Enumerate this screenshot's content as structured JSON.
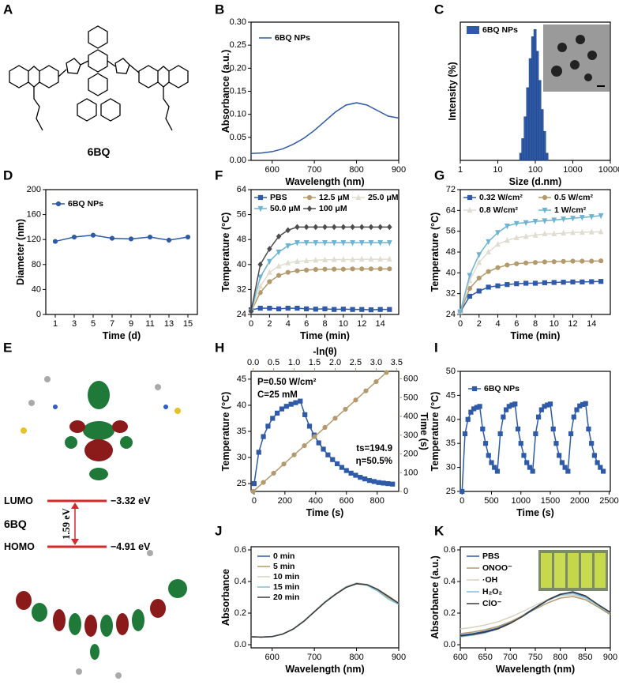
{
  "panel_labels": [
    "A",
    "B",
    "C",
    "D",
    "E",
    "F",
    "G",
    "H",
    "I",
    "J",
    "K"
  ],
  "structure_label": "6BQ",
  "energy_diagram": {
    "molecule": "6BQ",
    "lumo_label": "LUMO",
    "lumo_energy": "−3.32 eV",
    "homo_label": "HOMO",
    "homo_energy": "−4.91 eV",
    "gap": "1.59 eV"
  },
  "chart_data": [
    {
      "type": "line",
      "xlabel": "Wavelength (nm)",
      "ylabel": "Absorbance (a.u.)",
      "x": [
        550,
        575,
        600,
        625,
        650,
        675,
        700,
        725,
        750,
        775,
        800,
        825,
        850,
        875,
        900
      ],
      "series": [
        {
          "name": "6BQ NPs",
          "color": "#2e5aa8",
          "values": [
            0.015,
            0.016,
            0.019,
            0.025,
            0.035,
            0.048,
            0.065,
            0.085,
            0.105,
            0.12,
            0.125,
            0.12,
            0.108,
            0.096,
            0.092
          ]
        }
      ],
      "xlim": [
        550,
        900
      ],
      "xticks": [
        600,
        700,
        800,
        900
      ],
      "ylim": [
        0,
        0.3
      ],
      "yticks": [
        {
          "value": 0,
          "label": "0.00"
        },
        {
          "value": 0.05,
          "label": "0.05"
        },
        {
          "value": 0.1,
          "label": "0.10"
        },
        {
          "value": 0.15,
          "label": "0.15"
        },
        {
          "value": 0.2,
          "label": "0.20"
        },
        {
          "value": 0.25,
          "label": "0.25"
        },
        {
          "value": 0.3,
          "label": "0.30"
        }
      ],
      "legend": "upper left"
    },
    {
      "type": "histogram",
      "xlabel": "Size (d.nm)",
      "ylabel": "Intensity (%)",
      "name": "6BQ NPs",
      "color": "#2e5aa8",
      "bins": [
        38,
        43,
        50,
        58,
        68,
        79,
        91,
        106,
        122,
        142,
        164,
        190,
        220
      ],
      "counts": [
        1,
        3,
        6,
        10,
        14,
        17,
        18,
        15,
        11,
        7,
        4,
        1
      ],
      "xscale": "log",
      "xlim": [
        1,
        10000
      ],
      "xticks": [
        1,
        10,
        100,
        1000,
        10000
      ],
      "ylim": [
        0,
        19
      ],
      "yticks": [],
      "legend": "upper left"
    },
    {
      "type": "line",
      "xlabel": "Time (d)",
      "ylabel": "Diameter (nm)",
      "x": [
        1,
        3,
        5,
        7,
        9,
        11,
        13,
        15
      ],
      "series": [
        {
          "name": "6BQ NPs",
          "color": "#2e5aa8",
          "marker": "circle",
          "values": [
            117,
            124,
            127,
            122,
            121,
            124,
            119,
            124
          ],
          "errors": [
            2,
            3,
            4,
            2,
            1.5,
            3,
            4,
            2
          ]
        }
      ],
      "xlim": [
        0,
        16
      ],
      "xticks": [
        1,
        3,
        5,
        7,
        9,
        11,
        13,
        15
      ],
      "ylim": [
        0,
        200
      ],
      "yticks": [
        0,
        40,
        80,
        120,
        160,
        200
      ],
      "legend": "upper left"
    },
    {
      "type": "line",
      "xlabel": "Time (min)",
      "ylabel": "Temperature (°C)",
      "x": [
        0,
        1,
        2,
        3,
        4,
        5,
        6,
        7,
        8,
        9,
        10,
        11,
        12,
        13,
        14,
        15
      ],
      "series": [
        {
          "name": "PBS",
          "color": "#2e5aa8",
          "marker": "square",
          "values": [
            25.5,
            26,
            26,
            25.8,
            26,
            26,
            25.8,
            25.7,
            25.8,
            25.6,
            25.7,
            25.6,
            25.6,
            25.5,
            25.6,
            25.6
          ]
        },
        {
          "name": "12.5 μM",
          "color": "#b39a6c",
          "marker": "circle",
          "values": [
            25,
            31,
            34.5,
            36.5,
            37.5,
            38,
            38.2,
            38.4,
            38.5,
            38.5,
            38.5,
            38.6,
            38.6,
            38.6,
            38.6,
            38.6
          ]
        },
        {
          "name": "25.0 μM",
          "color": "#e0ddd0",
          "marker": "triangle",
          "values": [
            25,
            33,
            37.5,
            39.5,
            40.5,
            41,
            41.2,
            41.4,
            41.5,
            41.6,
            41.6,
            41.6,
            41.7,
            41.7,
            41.7,
            41.7
          ]
        },
        {
          "name": "50.0 μM",
          "color": "#6fb3d2",
          "marker": "triangle-down",
          "values": [
            25,
            36,
            41,
            44,
            46,
            47,
            47,
            47,
            47,
            47,
            47,
            47,
            47,
            47,
            47,
            47
          ]
        },
        {
          "name": "100 μM",
          "color": "#4d4d4d",
          "marker": "diamond",
          "values": [
            25,
            40,
            45,
            49,
            51,
            52,
            52,
            52,
            52,
            52,
            52,
            52,
            52,
            52,
            52,
            52
          ]
        }
      ],
      "xlim": [
        0,
        16
      ],
      "xticks": [
        0,
        2,
        4,
        6,
        8,
        10,
        12,
        14
      ],
      "ylim": [
        24,
        64
      ],
      "yticks": [
        24,
        32,
        40,
        48,
        56,
        64
      ],
      "legend": "upper center"
    },
    {
      "type": "line",
      "xlabel": "Time (min)",
      "ylabel": "Temperature (°C)",
      "x": [
        0,
        1,
        2,
        3,
        4,
        5,
        6,
        7,
        8,
        9,
        10,
        11,
        12,
        13,
        14,
        15
      ],
      "series": [
        {
          "name": "0.32 W/cm²",
          "color": "#2e5aa8",
          "marker": "square",
          "values": [
            25,
            31,
            33,
            34.5,
            35,
            35.5,
            35.8,
            36,
            36,
            36.2,
            36.3,
            36.4,
            36.5,
            36.5,
            36.6,
            36.7
          ]
        },
        {
          "name": "0.5 W/cm²",
          "color": "#b39a6c",
          "marker": "circle",
          "values": [
            25,
            34,
            38,
            40.5,
            42,
            43,
            43.5,
            43.8,
            44,
            44.2,
            44.3,
            44.4,
            44.5,
            44.5,
            44.5,
            44.6
          ]
        },
        {
          "name": "0.8 W/cm²",
          "color": "#e0ddd0",
          "marker": "triangle",
          "values": [
            25,
            37,
            44,
            48,
            51,
            52.5,
            53.5,
            54,
            54.5,
            55,
            55,
            55.3,
            55.5,
            55.6,
            55.7,
            55.8
          ]
        },
        {
          "name": "1 W/cm²",
          "color": "#6fb3d2",
          "marker": "triangle-down",
          "values": [
            25,
            39,
            47,
            52,
            55.5,
            58,
            59,
            59.3,
            59.8,
            60,
            60.3,
            60.7,
            61,
            61.3,
            61.6,
            62
          ]
        }
      ],
      "xlim": [
        0,
        16
      ],
      "xticks": [
        0,
        2,
        4,
        6,
        8,
        10,
        12,
        14
      ],
      "ylim": [
        24,
        72
      ],
      "yticks": [
        24,
        32,
        40,
        48,
        56,
        64,
        72
      ],
      "legend": "upper center"
    },
    {
      "type": "line",
      "xlabel": "Time (s)",
      "ylabel": "Temperature (°C)",
      "x2label": "-ln(θ)",
      "y2label": "Time (s)",
      "x": [
        0,
        30,
        60,
        90,
        120,
        150,
        180,
        210,
        240,
        270,
        300,
        330,
        360,
        390,
        420,
        450,
        480,
        510,
        540,
        570,
        600,
        630,
        660,
        690,
        720,
        750,
        780,
        810,
        840,
        870,
        900
      ],
      "series": [
        {
          "color": "#2e5aa8",
          "marker": "square",
          "values": [
            25,
            31,
            34,
            36,
            37.5,
            38.5,
            39.3,
            39.8,
            40.2,
            40.5,
            40.8,
            38.2,
            36,
            34.3,
            32.8,
            31.6,
            30.5,
            29.6,
            28.8,
            28.1,
            27.5,
            27,
            26.6,
            26.2,
            25.9,
            25.6,
            25.4,
            25.2,
            25.1,
            25,
            24.9
          ]
        },
        {
          "color": "#b39a6c",
          "marker": "circle",
          "axis": "y2",
          "x": [
            0,
            0.25,
            0.5,
            0.75,
            1,
            1.25,
            1.5,
            1.75,
            2,
            2.25,
            2.5,
            2.75,
            3,
            3.25
          ],
          "values": [
            0,
            48,
            97,
            146,
            195,
            244,
            292,
            341,
            390,
            438,
            487,
            536,
            585,
            634
          ]
        }
      ],
      "xlim": [
        -20,
        940
      ],
      "xticks": [
        0,
        200,
        400,
        600,
        800
      ],
      "ylim": [
        23.5,
        46.5
      ],
      "yticks": [
        25,
        30,
        35,
        40,
        45
      ],
      "x2lim": [
        -0.05,
        3.55
      ],
      "x2ticks": [
        {
          "value": 0,
          "label": "0.0"
        },
        {
          "value": 0.5,
          "label": "0.5"
        },
        {
          "value": 1,
          "label": "1.0"
        },
        {
          "value": 1.5,
          "label": "1.5"
        },
        {
          "value": 2,
          "label": "2.0"
        },
        {
          "value": 2.5,
          "label": "2.5"
        },
        {
          "value": 3,
          "label": "3.0"
        },
        {
          "value": 3.5,
          "label": "3.5"
        }
      ],
      "y2lim": [
        0,
        640
      ],
      "y2ticks": [
        0,
        100,
        200,
        300,
        400,
        500,
        600
      ],
      "annotations": [
        "P=0.50 W/cm²",
        "C=25 mM",
        "ts=194.9",
        "η=50.5%"
      ]
    },
    {
      "type": "line",
      "xlabel": "Time (s)",
      "ylabel": "Temperature (°C)",
      "x": [
        0,
        50,
        100,
        150,
        200,
        250,
        300,
        350,
        400,
        450,
        500,
        550,
        600,
        650,
        700,
        750,
        800,
        850,
        900,
        950,
        1000,
        1050,
        1100,
        1150,
        1200,
        1250,
        1300,
        1350,
        1400,
        1450,
        1500,
        1550,
        1600,
        1650,
        1700,
        1750,
        1800,
        1850,
        1900,
        1950,
        2000,
        2050,
        2100,
        2150,
        2200,
        2250,
        2300,
        2350,
        2400
      ],
      "series": [
        {
          "name": "6BQ NPs",
          "color": "#2e5aa8",
          "marker": "square",
          "values": [
            25,
            37,
            40,
            41.5,
            42.2,
            42.5,
            42.7,
            38,
            35,
            32.5,
            31,
            30,
            29.2,
            37,
            40.5,
            42,
            42.7,
            43,
            43.2,
            38,
            35,
            32.5,
            31,
            30,
            29.2,
            37,
            40.5,
            42,
            42.7,
            43,
            43.2,
            38,
            35,
            32.5,
            31,
            30,
            29.2,
            37,
            40.5,
            42,
            42.8,
            43.1,
            43.3,
            38,
            35,
            32.5,
            31,
            30,
            29.2
          ]
        }
      ],
      "xlim": [
        -30,
        2520
      ],
      "xticks": [
        0,
        500,
        1000,
        1500,
        2000,
        2500
      ],
      "ylim": [
        25,
        50
      ],
      "yticks": [
        25,
        30,
        35,
        40,
        45,
        50
      ],
      "legend": "upper left"
    },
    {
      "type": "line",
      "xlabel": "Wavelength (nm)",
      "ylabel": "Absorbance",
      "x": [
        550,
        575,
        600,
        625,
        650,
        675,
        700,
        725,
        750,
        775,
        800,
        825,
        850,
        875,
        900
      ],
      "series": [
        {
          "name": "0 min",
          "color": "#2e5aa8",
          "values": [
            0.05,
            0.048,
            0.052,
            0.068,
            0.1,
            0.15,
            0.21,
            0.27,
            0.32,
            0.365,
            0.39,
            0.38,
            0.35,
            0.305,
            0.26
          ]
        },
        {
          "name": "5 min",
          "color": "#b39a6c",
          "values": [
            0.05,
            0.048,
            0.052,
            0.067,
            0.099,
            0.148,
            0.208,
            0.268,
            0.318,
            0.362,
            0.385,
            0.378,
            0.348,
            0.3,
            0.262
          ]
        },
        {
          "name": "10 min",
          "color": "#d6d3c4",
          "values": [
            0.05,
            0.049,
            0.053,
            0.069,
            0.101,
            0.151,
            0.212,
            0.272,
            0.322,
            0.368,
            0.392,
            0.382,
            0.352,
            0.31,
            0.265
          ]
        },
        {
          "name": "15 min",
          "color": "#7cc0dc",
          "values": [
            0.05,
            0.048,
            0.052,
            0.068,
            0.1,
            0.149,
            0.209,
            0.27,
            0.32,
            0.364,
            0.388,
            0.375,
            0.34,
            0.29,
            0.255
          ]
        },
        {
          "name": "20 min",
          "color": "#3a3a3a",
          "values": [
            0.05,
            0.048,
            0.051,
            0.067,
            0.099,
            0.148,
            0.208,
            0.268,
            0.318,
            0.362,
            0.386,
            0.38,
            0.35,
            0.306,
            0.262
          ]
        }
      ],
      "xlim": [
        550,
        900
      ],
      "xticks": [
        600,
        700,
        800,
        900
      ],
      "ylim": [
        -0.02,
        0.62
      ],
      "yticks": [
        {
          "value": 0,
          "label": "0.0"
        },
        {
          "value": 0.2,
          "label": "0.2"
        },
        {
          "value": 0.4,
          "label": "0.4"
        },
        {
          "value": 0.6,
          "label": "0.6"
        }
      ],
      "legend": "upper left"
    },
    {
      "type": "line",
      "xlabel": "Wavelength (nm)",
      "ylabel": "Absorbance (a.u.)",
      "x": [
        600,
        625,
        650,
        675,
        700,
        725,
        750,
        775,
        800,
        825,
        850,
        875,
        900
      ],
      "series": [
        {
          "name": "PBS",
          "color": "#2e5aa8",
          "values": [
            0.06,
            0.07,
            0.085,
            0.105,
            0.14,
            0.185,
            0.235,
            0.285,
            0.32,
            0.33,
            0.305,
            0.25,
            0.2
          ]
        },
        {
          "name": "ONOO⁻",
          "color": "#b39a6c",
          "values": [
            0.07,
            0.08,
            0.095,
            0.115,
            0.145,
            0.185,
            0.225,
            0.265,
            0.295,
            0.305,
            0.285,
            0.24,
            0.19
          ]
        },
        {
          "name": "·OH",
          "color": "#d6d3c4",
          "values": [
            0.1,
            0.11,
            0.125,
            0.145,
            0.175,
            0.21,
            0.25,
            0.285,
            0.31,
            0.315,
            0.295,
            0.25,
            0.205
          ]
        },
        {
          "name": "H₂O₂",
          "color": "#7cc0dc",
          "values": [
            0.05,
            0.06,
            0.075,
            0.1,
            0.135,
            0.18,
            0.23,
            0.28,
            0.315,
            0.325,
            0.3,
            0.25,
            0.2
          ]
        },
        {
          "name": "ClO⁻",
          "color": "#3a3a3a",
          "values": [
            0.055,
            0.065,
            0.08,
            0.1,
            0.135,
            0.18,
            0.232,
            0.283,
            0.318,
            0.335,
            0.31,
            0.255,
            0.205
          ]
        }
      ],
      "xlim": [
        600,
        900
      ],
      "xticks": [
        600,
        650,
        700,
        750,
        800,
        850,
        900
      ],
      "ylim": [
        -0.02,
        0.62
      ],
      "yticks": [
        {
          "value": 0,
          "label": "0.0"
        },
        {
          "value": 0.2,
          "label": "0.2"
        },
        {
          "value": 0.4,
          "label": "0.4"
        },
        {
          "value": 0.6,
          "label": "0.6"
        }
      ],
      "legend": "upper left"
    }
  ]
}
